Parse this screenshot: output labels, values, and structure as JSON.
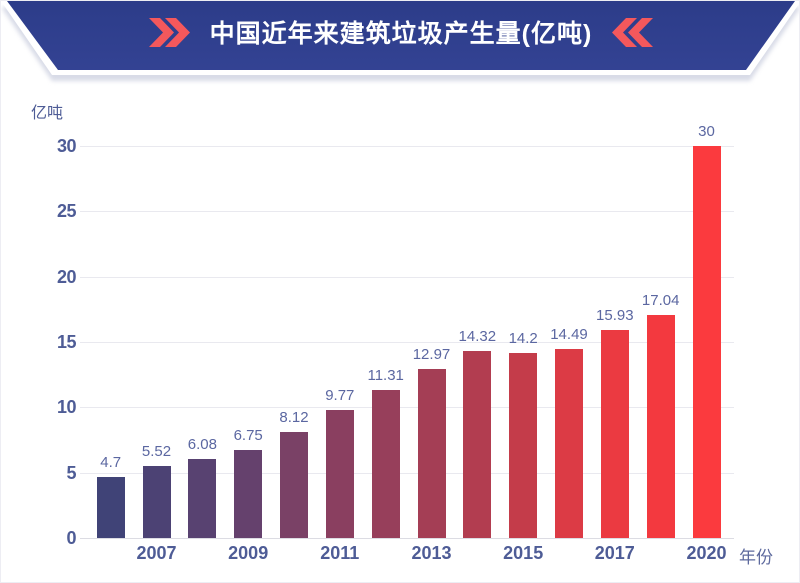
{
  "header": {
    "title": "中国近年来建筑垃圾产生量(亿吨)",
    "left_icon": "double-angle-right",
    "right_icon": "double-angle-left",
    "banner_color_top": "#2c3c89",
    "banner_color_bottom": "#344394",
    "chevron_color": "#f4585c",
    "title_color": "#ffffff"
  },
  "chart_data": {
    "type": "bar",
    "title": "中国近年来建筑垃圾产生量(亿吨)",
    "ylabel": "亿吨",
    "xlabel": "年份",
    "ylim": [
      0,
      30
    ],
    "y_ticks": [
      0,
      5,
      10,
      15,
      20,
      25,
      30
    ],
    "grid": true,
    "x_tick_labels": [
      "",
      "2007",
      "",
      "2009",
      "",
      "2011",
      "",
      "2013",
      "",
      "2015",
      "",
      "2017",
      "",
      "2020"
    ],
    "values": [
      4.7,
      5.52,
      6.08,
      6.75,
      8.12,
      9.77,
      11.31,
      12.97,
      14.32,
      14.2,
      14.49,
      15.93,
      17.04,
      30
    ],
    "value_labels": [
      "4.7",
      "5.52",
      "6.08",
      "6.75",
      "8.12",
      "9.77",
      "11.31",
      "12.97",
      "14.32",
      "14.2",
      "14.49",
      "15.93",
      "17.04",
      "30"
    ],
    "bar_colors": [
      "#404377",
      "#4c4274",
      "#584271",
      "#65416d",
      "#7a4166",
      "#8a3f60",
      "#973f5b",
      "#a43e55",
      "#b23d50",
      "#c43c4a",
      "#dc3b45",
      "#eb3a41",
      "#f3393f",
      "#fb3a3e"
    ],
    "colors": {
      "axis_tick_label": "#4e5c96",
      "value_label": "#5b67a1",
      "axis_unit_label": "#5e6a9e",
      "gridline": "#e9e9ef"
    }
  }
}
